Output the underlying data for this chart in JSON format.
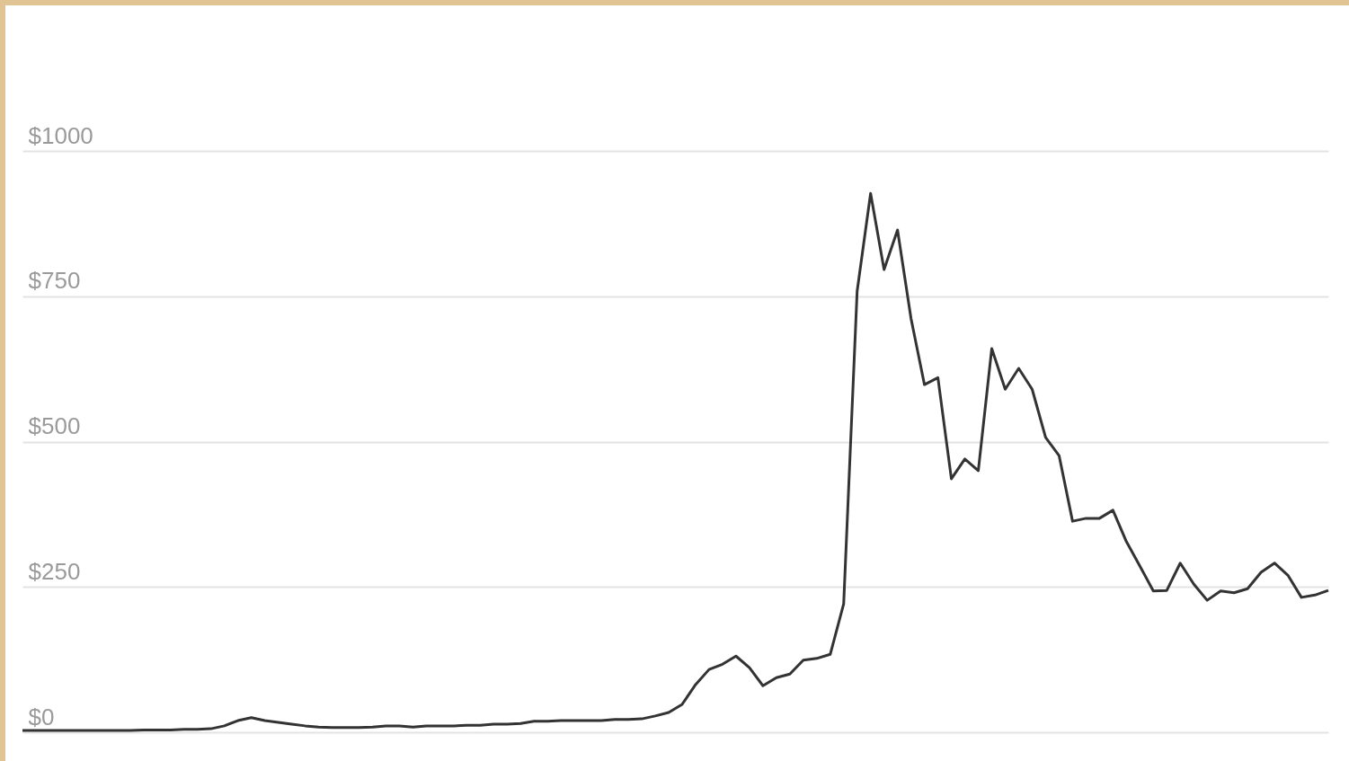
{
  "chart_data": {
    "type": "line",
    "categories": [
      null,
      null,
      null,
      null,
      null,
      null,
      null,
      null,
      null,
      null,
      null,
      null,
      null,
      null,
      null,
      null,
      null,
      null,
      null,
      null,
      null,
      null,
      null,
      null,
      null,
      null,
      null,
      null,
      null,
      null,
      null,
      null,
      null,
      null,
      null,
      null,
      null,
      null,
      null,
      null,
      null,
      null,
      null,
      null,
      null,
      null,
      null,
      null,
      null,
      null,
      null,
      null,
      null,
      null,
      null,
      null,
      null,
      null,
      null,
      null,
      null,
      null,
      null,
      null,
      null,
      null,
      null,
      null,
      null,
      null,
      null,
      null,
      null,
      null,
      null,
      null,
      null,
      null,
      null,
      null,
      null,
      null,
      null,
      null,
      null,
      null,
      null,
      null,
      null,
      null,
      null,
      null,
      null,
      null,
      null,
      null,
      null,
      null
    ],
    "series": [
      {
        "color": "#333333",
        "values": [
          3,
          3,
          3,
          3,
          3,
          3,
          3,
          3,
          3,
          4,
          4,
          4,
          5,
          5,
          6,
          11,
          20,
          25,
          20,
          17,
          14,
          11,
          9,
          8,
          8,
          8,
          9,
          11,
          11,
          9,
          11,
          11,
          11,
          12,
          12,
          14,
          14,
          15,
          19,
          19,
          20,
          20,
          20,
          20,
          22,
          22,
          23,
          28,
          34,
          48,
          82,
          108,
          117,
          131,
          111,
          80,
          94,
          100,
          124,
          127,
          134,
          221,
          759,
          927,
          796,
          864,
          712,
          598,
          610,
          436,
          470,
          450,
          660,
          590,
          626,
          590,
          507,
          476,
          363,
          368,
          368,
          382,
          328,
          286,
          243,
          244,
          291,
          255,
          227,
          243,
          240,
          247,
          275,
          291,
          270,
          232,
          236,
          244
        ]
      }
    ],
    "ylim": [
      0,
      1000
    ],
    "yticks": [
      {
        "value": 0,
        "label": "$0"
      },
      {
        "value": 250,
        "label": "$250"
      },
      {
        "value": 500,
        "label": "$500"
      },
      {
        "value": 750,
        "label": "$750"
      },
      {
        "value": 1000,
        "label": "$1000"
      }
    ],
    "grid": "y",
    "tick_labels": "y",
    "line_style": "solid"
  }
}
